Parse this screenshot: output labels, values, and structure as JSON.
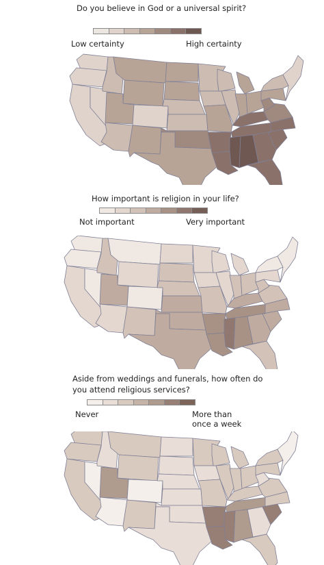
{
  "sections": [
    {
      "question": "Do you believe in God or a universal spirit?",
      "legend_low": "Low certainty",
      "legend_high": "High certainty",
      "scale": [
        "#ece6e1",
        "#dfd3cc",
        "#cdbcb1",
        "#b8a497",
        "#a08a7f",
        "#8a7169",
        "#6f5852"
      ],
      "levels": {
        "WA": 2,
        "OR": 2,
        "CA": 2,
        "NV": 2,
        "ID": 3,
        "MT": 4,
        "WY": 4,
        "UT": 4,
        "CO": 2,
        "AZ": 3,
        "NM": 4,
        "ND": 4,
        "SD": 4,
        "NE": 3,
        "KS": 3,
        "OK": 5,
        "TX": 4,
        "MN": 3,
        "IA": 3,
        "MO": 4,
        "AR": 6,
        "LA": 6,
        "WI": 3,
        "IL": 3,
        "MI": 4,
        "IN": 4,
        "OH": 4,
        "KY": 6,
        "TN": 6,
        "MS": 7,
        "AL": 7,
        "GA": 6,
        "FL": 6,
        "SC": 6,
        "NC": 6,
        "VA": 5,
        "WV": 5,
        "PA": 4,
        "NY": 3,
        "NE_REGION": 2
      }
    },
    {
      "question": "How important is religion in your life?",
      "legend_low": "Not important",
      "legend_high": "Very important",
      "scale": [
        "#efe8e3",
        "#e3d7cf",
        "#d2c2b8",
        "#bfab9f",
        "#a89185",
        "#907870",
        "#765f57"
      ],
      "levels": {
        "WA": 1,
        "OR": 1,
        "CA": 2,
        "NV": 1,
        "ID": 3,
        "MT": 1,
        "WY": 2,
        "UT": 4,
        "CO": 1,
        "AZ": 2,
        "NM": 3,
        "ND": 2,
        "SD": 3,
        "NE": 3,
        "KS": 4,
        "OK": 4,
        "TX": 4,
        "MN": 2,
        "IA": 2,
        "MO": 3,
        "AR": 5,
        "LA": 5,
        "WI": 2,
        "IL": 2,
        "MI": 2,
        "IN": 3,
        "OH": 3,
        "KY": 4,
        "TN": 5,
        "MS": 6,
        "AL": 5,
        "GA": 4,
        "FL": 3,
        "SC": 4,
        "NC": 4,
        "VA": 3,
        "WV": 3,
        "PA": 2,
        "NY": 1,
        "NE_REGION": 1
      }
    },
    {
      "question_line1": "Aside from weddings and funerals, how often do",
      "question_line2": "you attend religious services?",
      "legend_low": "Never",
      "legend_high_line1": "More than",
      "legend_high_line2": "once a week",
      "scale": [
        "#f4efea",
        "#e8ded7",
        "#d9cac0",
        "#c6b3a7",
        "#b09b8f",
        "#987f75",
        "#7d6459"
      ],
      "levels": {
        "WA": 3,
        "OR": 3,
        "CA": 3,
        "NV": 1,
        "ID": 2,
        "MT": 3,
        "WY": 3,
        "UT": 5,
        "CO": 1,
        "AZ": 1,
        "NM": 3,
        "ND": 2,
        "SD": 2,
        "NE": 2,
        "KS": 2,
        "OK": 2,
        "TX": 2,
        "MN": 3,
        "IA": 2,
        "MO": 3,
        "AR": 6,
        "LA": 6,
        "WI": 3,
        "IL": 3,
        "MI": 3,
        "IN": 3,
        "OH": 3,
        "KY": 3,
        "TN": 5,
        "MS": 6,
        "AL": 5,
        "GA": 2,
        "FL": 3,
        "SC": 6,
        "NC": 3,
        "VA": 3,
        "WV": 2,
        "PA": 3,
        "NY": 3,
        "NE_REGION": 1
      }
    }
  ]
}
